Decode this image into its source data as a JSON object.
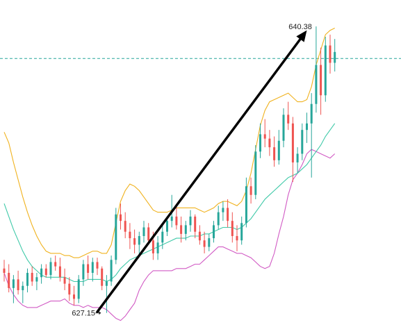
{
  "chart_data": {
    "type": "candlestick",
    "title": "",
    "xlabel": "",
    "ylabel": "",
    "ylim": [
      626.5,
      641.6
    ],
    "bar_count": 72,
    "colors": {
      "up": "#26a69a",
      "down": "#ef5350",
      "bb_upper": "#f0b21e",
      "bb_middle": "#3fc9a8",
      "bb_lower": "#d15ac4",
      "arrow": "#000000",
      "hline": "#26a69a"
    },
    "reference_line": {
      "price": 638.9,
      "style": "dashed"
    },
    "annotations": [
      {
        "text": "640.38",
        "price": 640.38,
        "bar": 67,
        "kind": "high"
      },
      {
        "text": "627.15",
        "price": 627.15,
        "bar": 22,
        "kind": "low"
      }
    ],
    "trend_arrow": {
      "from_bar": 20,
      "from_price": 627.2,
      "to_bar": 65,
      "to_price": 640.2
    },
    "ohlc": [
      [
        629.2,
        629.6,
        628.6,
        629.0
      ],
      [
        629.0,
        629.4,
        628.1,
        628.3
      ],
      [
        628.3,
        628.9,
        627.6,
        628.7
      ],
      [
        628.7,
        629.1,
        628.0,
        628.2
      ],
      [
        628.2,
        628.6,
        627.6,
        628.4
      ],
      [
        628.4,
        629.2,
        628.1,
        629.0
      ],
      [
        629.0,
        629.3,
        628.4,
        628.6
      ],
      [
        628.6,
        629.0,
        628.2,
        628.8
      ],
      [
        628.8,
        629.4,
        628.5,
        629.2
      ],
      [
        629.2,
        629.4,
        628.8,
        628.9
      ],
      [
        628.9,
        629.7,
        628.7,
        629.5
      ],
      [
        629.5,
        629.8,
        629.1,
        629.3
      ],
      [
        629.3,
        629.7,
        628.6,
        628.8
      ],
      [
        628.8,
        629.2,
        628.2,
        628.5
      ],
      [
        628.5,
        628.8,
        627.7,
        628.0
      ],
      [
        628.0,
        628.4,
        627.5,
        627.8
      ],
      [
        627.8,
        628.9,
        627.6,
        628.7
      ],
      [
        628.7,
        629.6,
        628.4,
        629.4
      ],
      [
        629.4,
        629.8,
        628.7,
        629.0
      ],
      [
        629.0,
        629.7,
        628.6,
        629.5
      ],
      [
        629.5,
        629.7,
        628.9,
        629.2
      ],
      [
        629.2,
        629.3,
        628.2,
        628.4
      ],
      [
        628.4,
        628.9,
        627.15,
        628.6
      ],
      [
        628.6,
        629.8,
        628.4,
        629.6
      ],
      [
        629.6,
        632.0,
        629.4,
        631.7
      ],
      [
        631.7,
        632.2,
        631.0,
        631.4
      ],
      [
        631.4,
        631.8,
        630.6,
        630.9
      ],
      [
        630.9,
        631.3,
        630.1,
        630.6
      ],
      [
        630.6,
        631.0,
        629.9,
        630.3
      ],
      [
        630.3,
        630.9,
        629.8,
        630.7
      ],
      [
        630.7,
        631.4,
        630.4,
        631.1
      ],
      [
        631.1,
        631.3,
        630.3,
        630.5
      ],
      [
        630.5,
        630.9,
        629.6,
        629.9
      ],
      [
        629.9,
        630.7,
        629.6,
        630.4
      ],
      [
        630.4,
        631.2,
        630.1,
        630.9
      ],
      [
        630.9,
        631.6,
        630.7,
        631.4
      ],
      [
        631.4,
        632.6,
        631.1,
        631.6
      ],
      [
        631.6,
        632.2,
        631.0,
        631.2
      ],
      [
        631.2,
        631.6,
        630.4,
        630.8
      ],
      [
        630.8,
        631.4,
        630.5,
        631.2
      ],
      [
        631.2,
        631.9,
        630.9,
        631.6
      ],
      [
        631.6,
        631.7,
        630.6,
        630.9
      ],
      [
        630.9,
        631.2,
        630.3,
        630.5
      ],
      [
        630.5,
        630.9,
        629.9,
        630.2
      ],
      [
        630.2,
        630.8,
        630.0,
        630.6
      ],
      [
        630.6,
        631.4,
        630.4,
        631.2
      ],
      [
        631.2,
        632.1,
        631.0,
        631.8
      ],
      [
        631.8,
        632.3,
        631.4,
        632.0
      ],
      [
        632.0,
        632.4,
        631.1,
        631.4
      ],
      [
        631.4,
        631.8,
        630.4,
        630.7
      ],
      [
        630.7,
        631.2,
        630.0,
        630.5
      ],
      [
        630.5,
        631.6,
        630.3,
        631.3
      ],
      [
        631.3,
        633.4,
        631.1,
        633.0
      ],
      [
        633.0,
        633.4,
        632.2,
        632.6
      ],
      [
        632.6,
        634.9,
        632.4,
        634.6
      ],
      [
        634.6,
        635.9,
        634.3,
        635.4
      ],
      [
        635.4,
        636.1,
        634.8,
        635.2
      ],
      [
        635.2,
        635.6,
        634.4,
        634.8
      ],
      [
        634.8,
        635.3,
        633.9,
        634.2
      ],
      [
        634.2,
        635.6,
        634.0,
        635.1
      ],
      [
        635.1,
        636.6,
        634.8,
        636.3
      ],
      [
        636.3,
        636.9,
        635.6,
        635.9
      ],
      [
        635.9,
        636.2,
        633.2,
        634.1
      ],
      [
        634.1,
        634.8,
        633.6,
        634.5
      ],
      [
        634.5,
        635.9,
        634.2,
        635.6
      ],
      [
        635.6,
        636.4,
        635.0,
        635.9
      ],
      [
        635.9,
        637.3,
        633.4,
        636.8
      ],
      [
        636.8,
        640.38,
        636.4,
        638.6
      ],
      [
        638.6,
        639.4,
        636.3,
        637.2
      ],
      [
        637.2,
        639.9,
        636.9,
        639.5
      ],
      [
        639.5,
        640.0,
        638.2,
        638.7
      ],
      [
        638.7,
        639.8,
        638.3,
        639.2
      ]
    ],
    "bb_upper": [
      635.5,
      635.0,
      634.1,
      633.3,
      632.5,
      631.8,
      631.2,
      630.7,
      630.3,
      630.0,
      629.9,
      629.9,
      629.9,
      629.8,
      629.8,
      629.7,
      629.7,
      629.8,
      629.9,
      630.0,
      630.0,
      629.9,
      629.9,
      630.3,
      631.3,
      632.3,
      632.8,
      633.1,
      633.0,
      632.8,
      632.5,
      632.2,
      631.9,
      631.8,
      631.8,
      631.8,
      631.9,
      632.0,
      632.0,
      632.0,
      632.0,
      632.0,
      631.9,
      631.8,
      631.9,
      632.0,
      632.2,
      632.3,
      632.3,
      632.2,
      632.1,
      632.3,
      632.8,
      633.6,
      634.7,
      635.8,
      636.5,
      636.9,
      637.0,
      637.1,
      637.2,
      637.3,
      637.1,
      636.9,
      636.9,
      637.0,
      637.6,
      638.6,
      639.3,
      640.0,
      640.2,
      640.3
    ],
    "bb_middle": [
      632.2,
      631.6,
      631.0,
      630.5,
      630.0,
      629.6,
      629.3,
      629.1,
      628.9,
      628.8,
      628.8,
      628.8,
      628.8,
      628.8,
      628.7,
      628.6,
      628.6,
      628.6,
      628.7,
      628.7,
      628.7,
      628.7,
      628.6,
      628.7,
      628.9,
      629.2,
      629.4,
      629.6,
      629.7,
      629.8,
      629.9,
      630.0,
      630.1,
      630.2,
      630.3,
      630.4,
      630.5,
      630.6,
      630.6,
      630.6,
      630.7,
      630.7,
      630.7,
      630.8,
      630.8,
      630.9,
      631.0,
      631.1,
      631.1,
      631.1,
      631.0,
      631.1,
      631.3,
      631.5,
      631.8,
      632.1,
      632.4,
      632.6,
      632.8,
      633.0,
      633.2,
      633.4,
      633.5,
      633.6,
      633.8,
      634.0,
      634.3,
      634.6,
      634.9,
      635.3,
      635.6,
      635.9
    ],
    "bb_lower": [
      629.0,
      628.4,
      628.0,
      627.7,
      627.5,
      627.4,
      627.4,
      627.4,
      627.5,
      627.6,
      627.7,
      627.7,
      627.7,
      627.8,
      627.6,
      627.5,
      627.5,
      627.4,
      627.5,
      627.4,
      627.4,
      627.4,
      627.3,
      627.1,
      626.9,
      626.8,
      627.0,
      627.3,
      627.6,
      628.2,
      628.6,
      628.9,
      629.1,
      629.1,
      629.1,
      629.1,
      629.1,
      629.2,
      629.2,
      629.2,
      629.3,
      629.4,
      629.4,
      629.6,
      629.8,
      630.0,
      630.2,
      630.2,
      630.1,
      630.0,
      629.9,
      629.9,
      629.8,
      629.7,
      629.5,
      629.3,
      629.2,
      629.3,
      629.9,
      630.8,
      631.6,
      632.6,
      633.3,
      633.6,
      634.0,
      634.5,
      634.7,
      634.6,
      634.5,
      634.4,
      634.3,
      634.5
    ]
  }
}
